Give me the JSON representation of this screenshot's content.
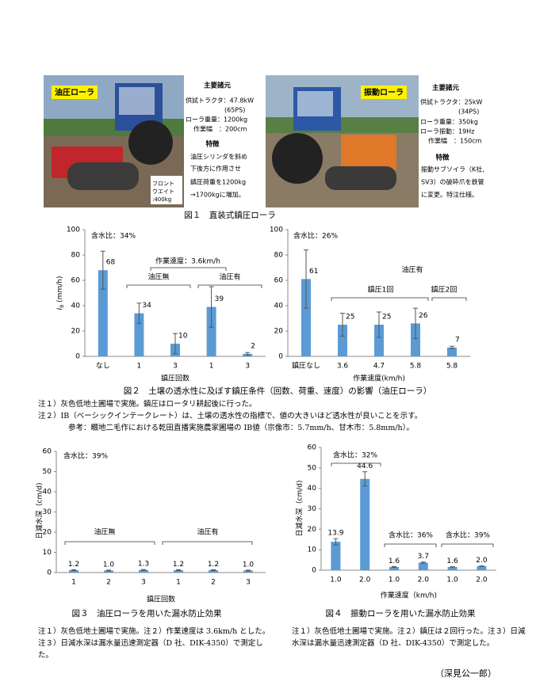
{
  "figure1": {
    "left": {
      "tag": "油圧ローラ",
      "weight": [
        "フロント",
        "ウエイト",
        ":400kg"
      ],
      "spec_title": "主要諸元",
      "specs": [
        "供試トラクタ：47.8kW",
        "(65PS)",
        "ローラ重量：1200kg",
        "作業幅　：200cm"
      ],
      "feature_title": "特徴",
      "features": [
        "油圧シリンダを斜め",
        "下後方に作用させ",
        "鎮圧荷重を1200kg",
        "→1700kgに増加。"
      ]
    },
    "right": {
      "tag": "振動ローラ",
      "spec_title": "主要諸元",
      "specs": [
        "供試トラクタ：25kW",
        "(34PS)",
        "ローラ重量：350kg",
        "ローラ振動：19Hz",
        "作業幅　：150cm"
      ],
      "feature_title": "特徴",
      "features": [
        "振動サブソイラ（K社,",
        "SV3）の破砕爪を鉄管",
        "に変更。特注仕様。"
      ]
    },
    "caption": "図１　直装式鎮圧ローラ"
  },
  "chart_data": [
    {
      "type": "bar",
      "y_label": {
        "symbol": "I",
        "sub": "B",
        "unit": " (mm/h)"
      },
      "x_label": "鎮圧回数",
      "categories": [
        "なし",
        "1",
        "3",
        "1",
        "3"
      ],
      "values": [
        68,
        34,
        10,
        39,
        2
      ],
      "errors": [
        15,
        8,
        8,
        16,
        1
      ],
      "color": "#5b9bd5",
      "ylim": [
        0,
        100
      ],
      "yticks": [
        0,
        20,
        40,
        60,
        80,
        100
      ],
      "annotations": [
        "含水比：34%",
        "作業速度：3.6km/h",
        "油圧無",
        "油圧有"
      ]
    },
    {
      "type": "bar",
      "x_label": "作業速度(km/h)",
      "categories": [
        "鎮圧なし",
        "3.6",
        "4.7",
        "5.8",
        "5.8"
      ],
      "values": [
        61,
        25,
        25,
        26,
        7
      ],
      "errors": [
        23,
        9,
        10,
        12,
        1
      ],
      "color": "#5b9bd5",
      "ylim": [
        0,
        100
      ],
      "yticks": [
        0,
        20,
        40,
        60,
        80,
        100
      ],
      "annotations": [
        "含水比：26%",
        "油圧有",
        "鎮圧1回",
        "鎮圧2回"
      ]
    },
    {
      "type": "bar",
      "y_label": "日減水深（cm/d)",
      "x_label": "鎮圧回数",
      "categories": [
        "1",
        "2",
        "3",
        "1",
        "2",
        "3"
      ],
      "values": [
        1.2,
        1.0,
        1.3,
        1.2,
        1.2,
        1.0
      ],
      "value_labels": [
        "1.2",
        "1.0",
        "1.3",
        "1.2",
        "1.2",
        "1.0"
      ],
      "errors": [
        0.2,
        0.2,
        0.2,
        0.2,
        0.2,
        0.2
      ],
      "color": "#5b9bd5",
      "ylim": [
        0,
        60
      ],
      "yticks": [
        0,
        10,
        20,
        30,
        40,
        50,
        60
      ],
      "annotations": [
        "含水比：39%",
        "油圧無",
        "油圧有"
      ]
    },
    {
      "type": "bar",
      "y_label": "日減水深（cm/d)",
      "x_label": "作業速度（km/h)",
      "categories": [
        "1.0",
        "2.0",
        "1.0",
        "2.0",
        "1.0",
        "2.0"
      ],
      "values": [
        13.9,
        44.6,
        1.6,
        3.7,
        1.6,
        2.0
      ],
      "value_labels": [
        "13.9",
        "44.6",
        "1.6",
        "3.7",
        "1.6",
        "2.0"
      ],
      "errors": [
        1.5,
        3.5,
        0.2,
        0.3,
        0.1,
        0.1
      ],
      "color": "#5b9bd5",
      "ylim": [
        0,
        60
      ],
      "yticks": [
        0,
        10,
        20,
        30,
        40,
        50,
        60
      ],
      "annotations": [
        "含水比：32%",
        "含水比：36%",
        "含水比：39%"
      ]
    }
  ],
  "figure2": {
    "caption": "図２　土壌の透水性に及ぼす鎮圧条件（回数、荷重、速度）の影響（油圧ローラ）",
    "notes": [
      "注１）灰色低地土圃場で実施。鎮圧はロータリ耕起後に行った。",
      "注２）IB（ベーシックインテークレート）は、土壌の透水性の指標で、値の大きいほど透水性が良いことを示す。",
      "参考：畷地二毛作における乾田直播実施農家圃場の IB値（宗像市：5.7mm/h、甘木市：5.8mm/h）。"
    ]
  },
  "figure3": {
    "caption": "図３　油圧ローラを用いた漏水防止効果",
    "note": "注１）灰色低地土圃場で実施。注２）作業速度は 3.6km/h とした。注３）日減水深は漏水量迅速測定器（D 社、DIK-4350）で測定した。"
  },
  "figure4": {
    "caption": "図４　振動ローラを用いた漏水防止効果",
    "note": "注１）灰色低地土圃場で実施。注２）鎮圧は２回行った。注３）日減水深は漏水量迅速測定器（D 社、DIK-4350）で測定した。"
  },
  "author": "（深見公一郎）"
}
